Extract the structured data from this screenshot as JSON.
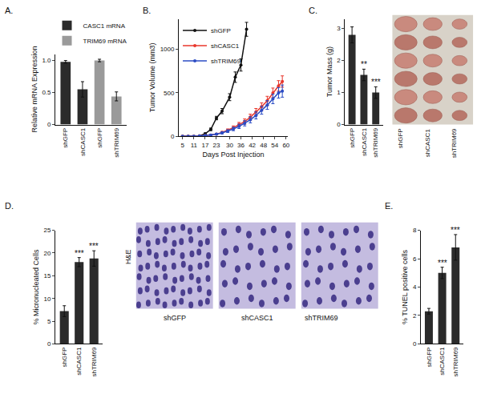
{
  "chart_data": [
    {
      "title": "A.",
      "type": "bar",
      "categories": [
        "shGFP",
        "shCASC1",
        "shGFP",
        "shTRIM69"
      ],
      "ylabel": "Relative mRNA Expression",
      "series": [
        {
          "name": "CASC1 mRNA",
          "color": "#2b2b2b",
          "values": [
            0.98,
            0.55,
            null,
            null
          ],
          "errors": [
            0.02,
            0.12,
            null,
            null
          ]
        },
        {
          "name": "TRIM69 mRNA",
          "color": "#9a9a9a",
          "values": [
            null,
            null,
            1.0,
            0.44
          ],
          "errors": [
            null,
            null,
            0.02,
            0.07
          ]
        }
      ],
      "ylim": [
        0,
        1.1
      ],
      "yticks": [
        0,
        0.5,
        {
          "value": 1,
          "label": "1.0"
        }
      ],
      "legend": "top"
    },
    {
      "title": "B.",
      "type": "line",
      "xlabel": "Days Post Injection",
      "ylabel": "Tumor Volume (mm3)",
      "xlim": [
        3,
        61
      ],
      "xticks": [
        5,
        11,
        17,
        23,
        30,
        36,
        42,
        48,
        54,
        60
      ],
      "ylim": [
        0,
        1350
      ],
      "yticks": [
        0,
        500,
        1000
      ],
      "legend": "top left",
      "series": [
        {
          "name": "shGFP",
          "color": "#111111",
          "x": [
            5,
            8,
            11,
            14,
            17,
            20,
            23,
            26,
            30,
            33,
            36,
            39
          ],
          "values": [
            0,
            0,
            0,
            5,
            30,
            80,
            210,
            290,
            450,
            680,
            820,
            1230
          ],
          "errors": [
            0,
            0,
            0,
            2,
            8,
            15,
            20,
            30,
            40,
            60,
            70,
            80
          ]
        },
        {
          "name": "shCASC1",
          "color": "#e8372c",
          "x": [
            5,
            8,
            11,
            14,
            17,
            20,
            23,
            26,
            29,
            32,
            35,
            38,
            41,
            44,
            47,
            50,
            53,
            56,
            58
          ],
          "values": [
            0,
            0,
            0,
            5,
            10,
            15,
            25,
            45,
            70,
            100,
            135,
            170,
            220,
            280,
            340,
            410,
            500,
            580,
            630
          ],
          "errors": [
            0,
            0,
            0,
            2,
            4,
            6,
            8,
            10,
            15,
            20,
            25,
            30,
            35,
            40,
            45,
            50,
            55,
            60,
            65
          ]
        },
        {
          "name": "shTRIM69",
          "color": "#2b4cc4",
          "x": [
            5,
            8,
            11,
            14,
            17,
            20,
            23,
            26,
            29,
            32,
            35,
            38,
            41,
            44,
            47,
            50,
            53,
            56,
            58
          ],
          "values": [
            0,
            0,
            0,
            5,
            10,
            15,
            25,
            40,
            60,
            85,
            115,
            150,
            190,
            240,
            300,
            360,
            430,
            500,
            520
          ],
          "errors": [
            0,
            0,
            0,
            2,
            4,
            6,
            8,
            10,
            15,
            20,
            25,
            30,
            35,
            40,
            45,
            50,
            55,
            60,
            70
          ]
        }
      ]
    },
    {
      "title": "C.",
      "type": "bar",
      "categories": [
        "shGFP",
        "shCASC1",
        "shTRIM69"
      ],
      "ylabel": "Tumor Mass (g)",
      "color": "#2b2b2b",
      "values": [
        2.8,
        1.55,
        1.0
      ],
      "errors": [
        0.25,
        0.18,
        0.18
      ],
      "annotations": [
        null,
        "**",
        "***"
      ],
      "ylim": [
        0,
        3.3
      ],
      "yticks": [
        0,
        1,
        2,
        3
      ]
    },
    {
      "type": "image",
      "categories": [
        "shGFP",
        "shCASC1",
        "shTRIM69"
      ]
    },
    {
      "title": "D.",
      "type": "bar",
      "categories": [
        "shGFP",
        "shCASC1",
        "shTRIM69"
      ],
      "ylabel": "% Micronucleated Cells",
      "color": "#2b2b2b",
      "values": [
        7.2,
        18,
        18.8
      ],
      "errors": [
        1.2,
        1.0,
        1.7
      ],
      "annotations": [
        null,
        "***",
        "***"
      ],
      "ylim": [
        0,
        25
      ],
      "yticks": [
        0,
        5,
        10,
        15,
        20,
        25
      ]
    },
    {
      "type": "image",
      "ylabel": "H&E",
      "categories": [
        "shGFP",
        "shCASC1",
        "shTRIM69"
      ]
    },
    {
      "title": "E.",
      "type": "bar",
      "categories": [
        "shGFP",
        "shCASC1",
        "shTRIM69"
      ],
      "ylabel": "% TUNEL positive cells",
      "color": "#2b2b2b",
      "values": [
        2.3,
        5.0,
        6.8
      ],
      "errors": [
        0.2,
        0.4,
        0.9
      ],
      "annotations": [
        null,
        "***",
        "***"
      ],
      "ylim": [
        0,
        8
      ],
      "yticks": [
        0,
        2,
        4,
        6,
        8
      ]
    }
  ]
}
